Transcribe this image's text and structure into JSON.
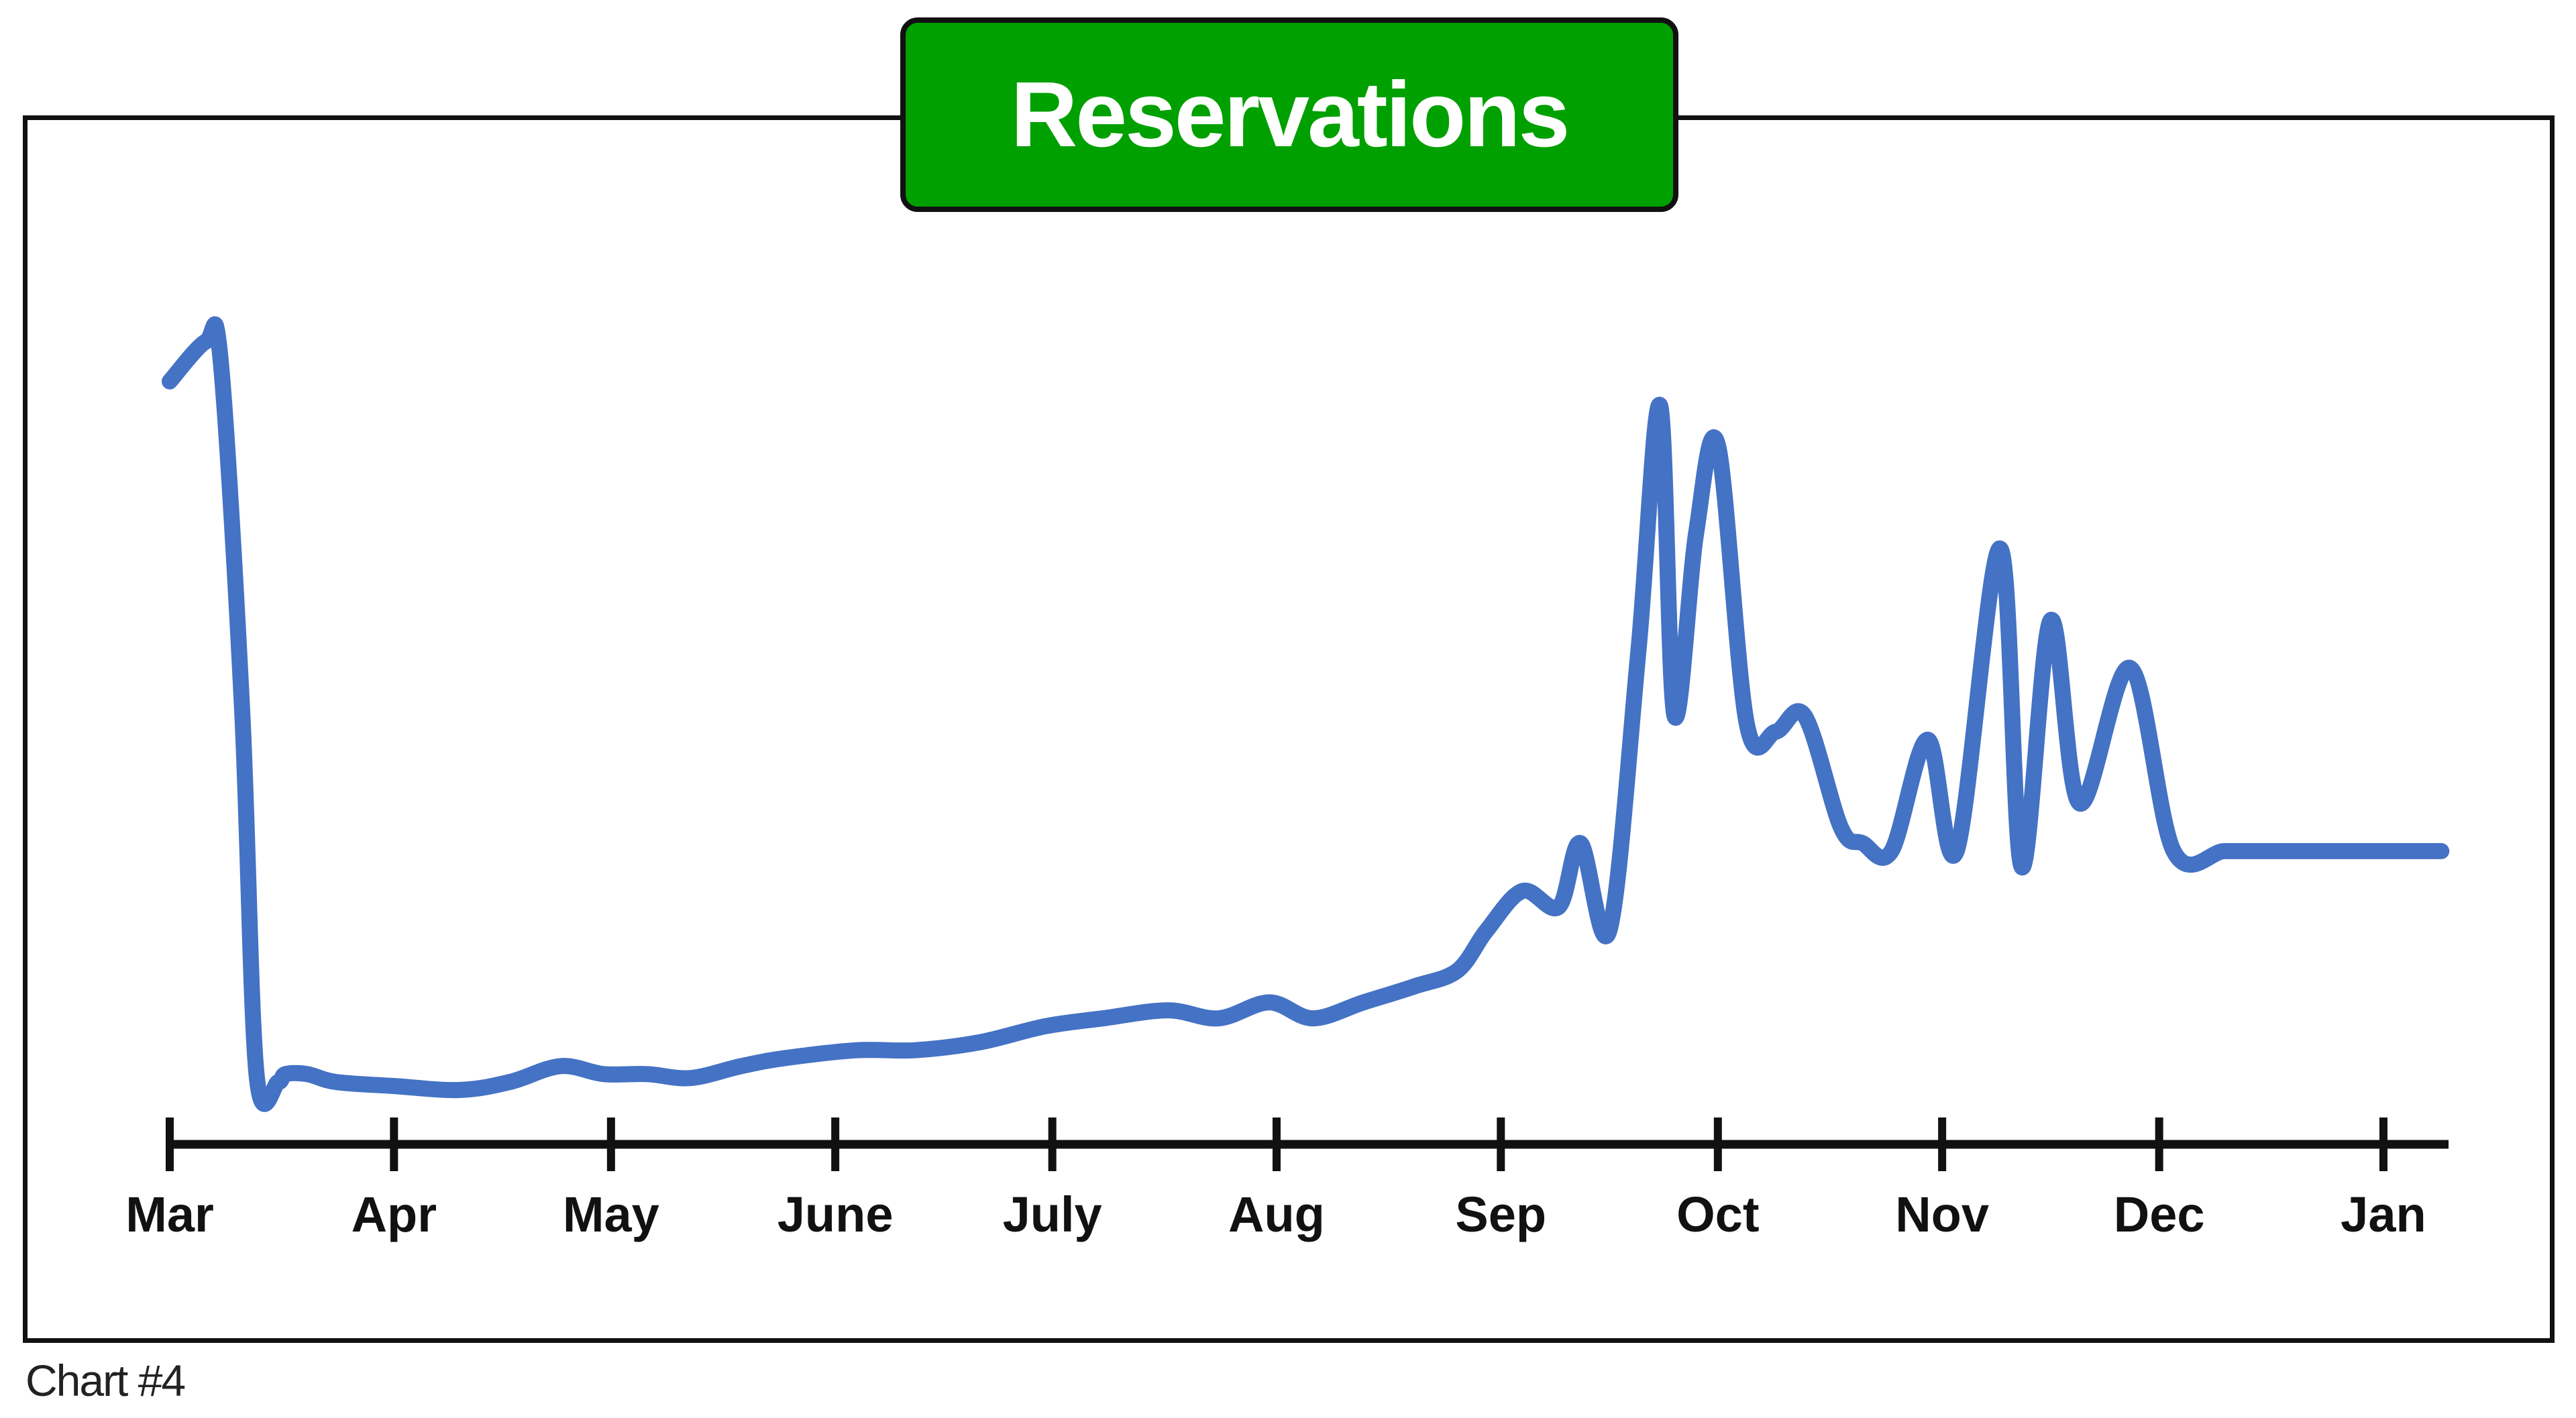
{
  "caption": "Chart #4",
  "colors": {
    "line": "#4472c4",
    "title_bg": "#00a000",
    "axis": "#111111"
  },
  "chart_data": {
    "type": "line",
    "title": "Reservations",
    "xlabel": "",
    "ylabel": "",
    "grid": false,
    "legend": "none",
    "y_axis_shown": false,
    "x_range": [
      "2020-03-01",
      "2021-01-10"
    ],
    "categories": [
      "Mar",
      "Apr",
      "May",
      "June",
      "July",
      "Aug",
      "Sep",
      "Oct",
      "Nov",
      "Dec",
      "Jan"
    ],
    "category_dates": [
      "2020-03-01",
      "2020-04-01",
      "2020-05-01",
      "2020-06-01",
      "2020-07-01",
      "2020-08-01",
      "2020-09-01",
      "2020-10-01",
      "2020-11-01",
      "2020-12-01",
      "2021-01-01"
    ],
    "ylim": [
      0,
      100
    ],
    "series": [
      {
        "x": [
          "2020-03-01",
          "2020-03-06",
          "2020-03-08",
          "2020-03-11",
          "2020-03-13",
          "2020-03-16",
          "2020-03-17",
          "2020-03-20",
          "2020-03-24",
          "2020-04-01",
          "2020-04-10",
          "2020-04-17",
          "2020-04-24",
          "2020-04-30",
          "2020-05-06",
          "2020-05-12",
          "2020-05-19",
          "2020-05-25",
          "2020-06-04",
          "2020-06-12",
          "2020-06-21",
          "2020-06-30",
          "2020-07-08",
          "2020-07-17",
          "2020-07-24",
          "2020-07-31",
          "2020-08-06",
          "2020-08-13",
          "2020-08-20",
          "2020-08-26",
          "2020-08-30",
          "2020-09-04",
          "2020-09-09",
          "2020-09-12",
          "2020-09-16",
          "2020-09-20",
          "2020-09-23",
          "2020-09-25",
          "2020-09-28",
          "2020-10-01",
          "2020-10-05",
          "2020-10-09",
          "2020-10-13",
          "2020-10-18",
          "2020-10-21",
          "2020-10-25",
          "2020-10-30",
          "2020-11-03",
          "2020-11-09",
          "2020-11-12",
          "2020-11-16",
          "2020-11-20",
          "2020-11-27",
          "2020-12-03",
          "2020-12-10",
          "2020-12-15",
          "2020-12-19",
          "2020-12-24",
          "2020-12-28",
          "2021-01-02",
          "2021-01-09"
        ],
        "values": [
          89,
          94,
          92,
          48,
          2,
          1,
          2,
          2,
          1,
          0.5,
          0,
          1,
          3,
          2,
          2,
          1.5,
          3,
          4,
          5,
          5,
          6,
          8,
          9,
          10,
          9,
          11,
          9,
          11,
          13,
          15,
          20,
          25,
          23,
          31,
          20,
          55,
          86,
          47,
          70,
          81,
          46,
          45,
          47,
          33,
          31,
          30,
          44,
          30,
          68,
          28,
          59,
          36,
          53,
          30,
          30,
          30,
          30,
          30,
          30,
          30,
          30
        ]
      }
    ]
  }
}
